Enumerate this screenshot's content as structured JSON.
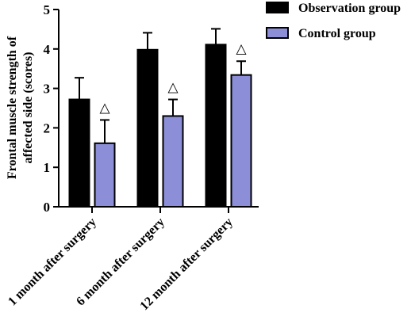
{
  "chart_data": {
    "type": "bar",
    "title": "",
    "xlabel": "",
    "ylabel": "Frontal muscle strength of affected side (scores)",
    "ylabel_lines": [
      "Frontal muscle strength of",
      "affected side (scores)"
    ],
    "ylim": [
      0,
      5
    ],
    "yticks": [
      0,
      1,
      2,
      3,
      4,
      5
    ],
    "ytick_labels": [
      "0",
      "1",
      "2",
      "3",
      "4",
      "5"
    ],
    "categories": [
      "1 month after surgery",
      "6 month after surgery",
      "12 month after surgery"
    ],
    "series": [
      {
        "name": "Observation group",
        "color": "#000000",
        "values": [
          2.72,
          3.98,
          4.11
        ],
        "errors": [
          0.55,
          0.43,
          0.4
        ]
      },
      {
        "name": "Control group",
        "color": "#8c8fd8",
        "values": [
          1.61,
          2.3,
          3.34
        ],
        "errors": [
          0.59,
          0.42,
          0.35
        ]
      }
    ],
    "annotation_symbol": "△",
    "annotations_on_series": "Control group",
    "legend_position": "top-right",
    "grid": false
  }
}
